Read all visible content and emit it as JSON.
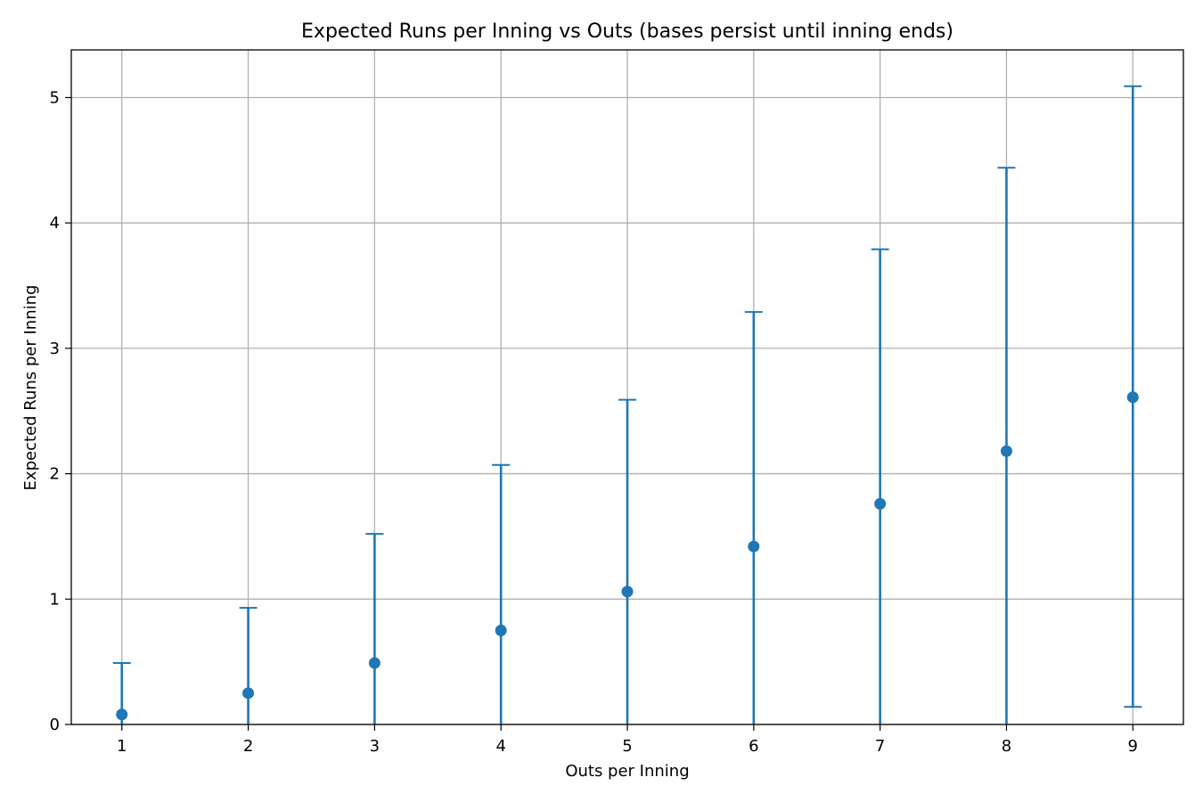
{
  "chart_data": {
    "type": "scatter",
    "title": "Expected Runs per Inning vs Outs (bases persist until inning ends)",
    "xlabel": "Outs per Inning",
    "ylabel": "Expected Runs per Inning",
    "x": [
      1,
      2,
      3,
      4,
      5,
      6,
      7,
      8,
      9
    ],
    "y": [
      0.08,
      0.25,
      0.49,
      0.75,
      1.06,
      1.42,
      1.76,
      2.18,
      2.61
    ],
    "error_low": [
      0.0,
      0.0,
      0.0,
      0.0,
      0.0,
      0.0,
      0.0,
      0.0,
      0.14
    ],
    "error_high": [
      0.49,
      0.93,
      1.52,
      2.07,
      2.59,
      3.29,
      3.79,
      4.44,
      5.09
    ],
    "xlim": [
      0.6,
      9.4
    ],
    "ylim": [
      0,
      5.38
    ],
    "xticks": [
      1,
      2,
      3,
      4,
      5,
      6,
      7,
      8,
      9
    ],
    "yticks": [
      0,
      1,
      2,
      3,
      4,
      5
    ],
    "grid": true,
    "color": "#1f77b4"
  }
}
